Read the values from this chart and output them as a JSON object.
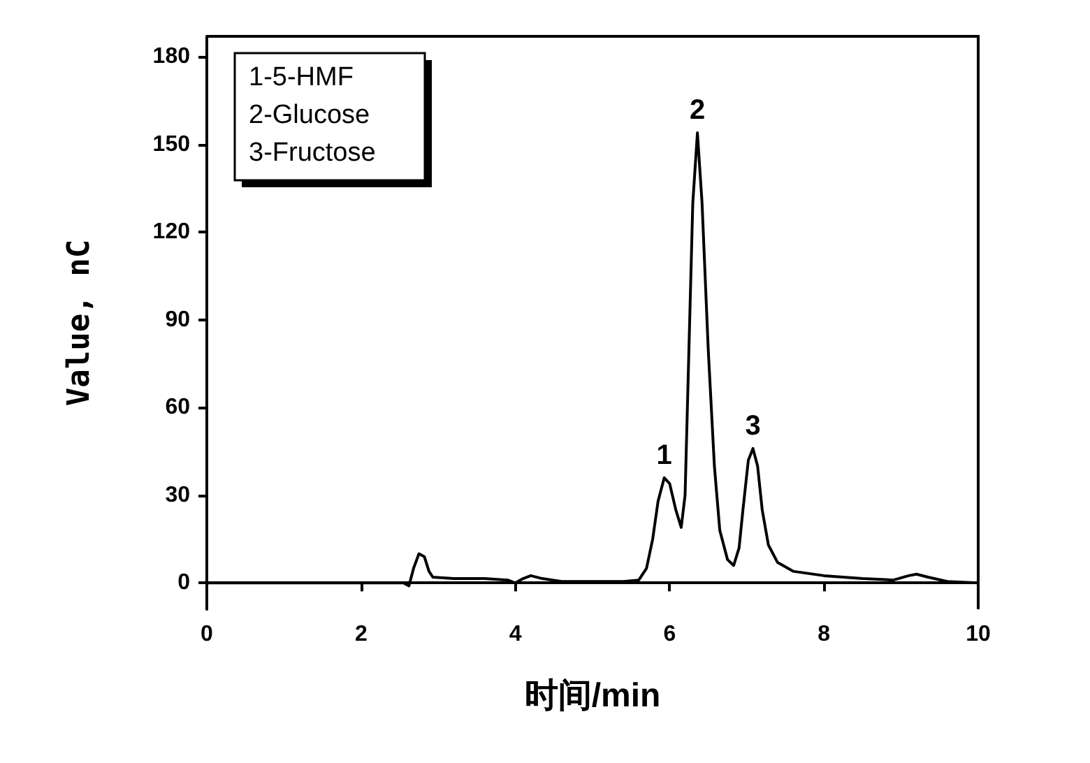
{
  "chart_data": {
    "type": "line",
    "xlabel": "时间/min",
    "ylabel": "Value, nC",
    "xlim": [
      0,
      10
    ],
    "xticks": [
      0,
      2,
      4,
      6,
      8,
      10
    ],
    "ylim": [
      -9,
      187
    ],
    "yticks": [
      0,
      30,
      60,
      90,
      120,
      150,
      180
    ],
    "grid": false,
    "marker": "none",
    "line_style": "solid",
    "annotations": [
      "1-5-HMF",
      "2-Glucose",
      "3-Fructose",
      {
        "text": "1",
        "x": 5.93,
        "y": 36
      },
      {
        "text": "2",
        "x": 6.36,
        "y": 154
      },
      {
        "text": "3",
        "x": 7.08,
        "y": 46
      }
    ],
    "series": [
      {
        "color": "#000000",
        "x": [
          0,
          1,
          2,
          2.55,
          2.62,
          2.68,
          2.75,
          2.82,
          2.88,
          2.93,
          3.2,
          3.6,
          3.9,
          4.0,
          4.1,
          4.2,
          4.35,
          4.6,
          5.0,
          5.4,
          5.6,
          5.7,
          5.78,
          5.85,
          5.93,
          6.0,
          6.08,
          6.15,
          6.2,
          6.25,
          6.3,
          6.36,
          6.42,
          6.5,
          6.58,
          6.65,
          6.75,
          6.83,
          6.9,
          6.95,
          7.02,
          7.08,
          7.14,
          7.2,
          7.28,
          7.4,
          7.6,
          8.0,
          8.5,
          8.9,
          9.1,
          9.2,
          9.35,
          9.6,
          10
        ],
        "values": [
          0,
          0,
          0,
          0,
          -1,
          5,
          10,
          9,
          4,
          2,
          1.5,
          1.5,
          1,
          0,
          1.5,
          2.5,
          1.5,
          0.5,
          0.5,
          0.5,
          1,
          5,
          15,
          28,
          36,
          34,
          25,
          19,
          30,
          80,
          130,
          154,
          130,
          80,
          40,
          18,
          8,
          6,
          12,
          25,
          42,
          46,
          40,
          25,
          13,
          7,
          4,
          2.5,
          1.5,
          1,
          2.5,
          3,
          2,
          0.5,
          0
        ]
      }
    ]
  }
}
